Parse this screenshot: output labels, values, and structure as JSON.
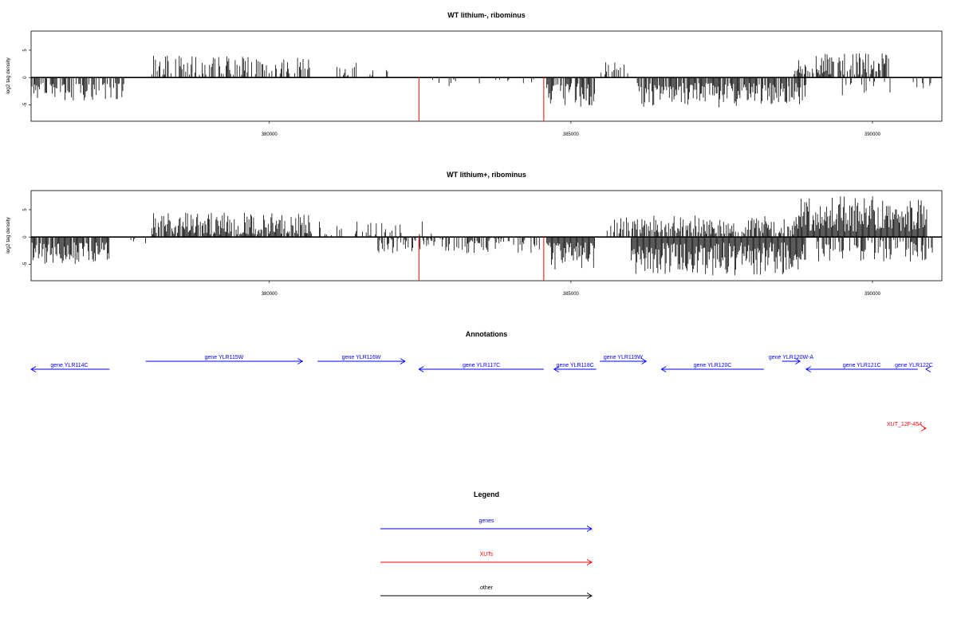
{
  "chart_data": [
    {
      "type": "bar",
      "title": "WT lithium-, ribominus",
      "ylabel": "log2 tag density",
      "xlim": [
        376050,
        391150
      ],
      "ylim": [
        -8,
        8.5
      ],
      "x_ticks": [
        380000,
        385000,
        390000
      ],
      "x_tick_labels": [
        "380000",
        "385000",
        "390000"
      ],
      "y_ticks": [
        -5,
        0,
        5
      ],
      "y_tick_labels": [
        "-5",
        "0",
        "5"
      ],
      "baseline_range": [
        376050,
        391150
      ],
      "segments": [
        {
          "start": 376050,
          "end": 377600,
          "sign": -1,
          "min": 1.0,
          "max": 4.2,
          "density": 0.6
        },
        {
          "start": 378050,
          "end": 380700,
          "sign": 1,
          "min": 0.5,
          "max": 4.0,
          "density": 0.55
        },
        {
          "start": 381000,
          "end": 382000,
          "sign": 1,
          "min": 0.3,
          "max": 3.0,
          "density": 0.15
        },
        {
          "start": 382600,
          "end": 384400,
          "sign": -1,
          "min": 0.3,
          "max": 2.0,
          "density": 0.15
        },
        {
          "start": 384600,
          "end": 385400,
          "sign": -1,
          "min": 1.0,
          "max": 5.5,
          "density": 0.7
        },
        {
          "start": 385500,
          "end": 386000,
          "sign": 1,
          "min": 0.5,
          "max": 3.0,
          "density": 0.3
        },
        {
          "start": 386100,
          "end": 388900,
          "sign": -1,
          "min": 1.0,
          "max": 5.5,
          "density": 0.9
        },
        {
          "start": 388700,
          "end": 390300,
          "sign": 1,
          "min": 0.5,
          "max": 4.5,
          "density": 0.7
        },
        {
          "start": 389500,
          "end": 390300,
          "sign": -1,
          "min": 0.5,
          "max": 3.5,
          "density": 0.3
        },
        {
          "start": 390600,
          "end": 391000,
          "sign": -1,
          "min": 0.5,
          "max": 2.0,
          "density": 0.2
        }
      ],
      "red_markers": [
        {
          "x": 382480,
          "y": -8
        },
        {
          "x": 384550,
          "y": -8
        }
      ]
    },
    {
      "type": "bar",
      "title": "WT lithium+, ribominus",
      "ylabel": "log2 tag density",
      "xlim": [
        376050,
        391150
      ],
      "ylim": [
        -8,
        8.5
      ],
      "x_ticks": [
        380000,
        385000,
        390000
      ],
      "x_tick_labels": [
        "380000",
        "385000",
        "390000"
      ],
      "y_ticks": [
        -5,
        0,
        5
      ],
      "y_tick_labels": [
        "-5",
        "0",
        "5"
      ],
      "baseline_range": [
        376050,
        391150
      ],
      "segments": [
        {
          "start": 376050,
          "end": 377350,
          "sign": -1,
          "min": 1.0,
          "max": 5.0,
          "density": 0.9
        },
        {
          "start": 377400,
          "end": 378000,
          "sign": -1,
          "min": 0.3,
          "max": 1.2,
          "density": 0.15
        },
        {
          "start": 378050,
          "end": 380700,
          "sign": 1,
          "min": 0.5,
          "max": 4.5,
          "density": 0.85
        },
        {
          "start": 380800,
          "end": 382700,
          "sign": 1,
          "min": 0.3,
          "max": 3.0,
          "density": 0.3
        },
        {
          "start": 381800,
          "end": 384500,
          "sign": -1,
          "min": 0.3,
          "max": 3.0,
          "density": 0.45
        },
        {
          "start": 384600,
          "end": 385400,
          "sign": -1,
          "min": 1.0,
          "max": 6.0,
          "density": 0.95
        },
        {
          "start": 385600,
          "end": 388800,
          "sign": 1,
          "min": 0.5,
          "max": 4.0,
          "density": 0.7
        },
        {
          "start": 386000,
          "end": 388900,
          "sign": -1,
          "min": 1.0,
          "max": 7.0,
          "density": 1.0
        },
        {
          "start": 388800,
          "end": 390900,
          "sign": 1,
          "min": 1.0,
          "max": 7.5,
          "density": 1.0
        },
        {
          "start": 389000,
          "end": 391000,
          "sign": -1,
          "min": 0.5,
          "max": 4.5,
          "density": 0.5
        }
      ],
      "red_markers": [
        {
          "x": 382480,
          "y": -8
        },
        {
          "x": 384550,
          "y": -8
        }
      ]
    }
  ],
  "annotations": {
    "title": "Annotations",
    "xlim": [
      376050,
      391150
    ],
    "features": [
      {
        "label": "gene YLR114C",
        "start": 375500,
        "end": 377350,
        "strand": "-",
        "row": 1,
        "kind": "gene"
      },
      {
        "label": "gene YLR115W",
        "start": 377950,
        "end": 380550,
        "strand": "+",
        "row": 0,
        "kind": "gene"
      },
      {
        "label": "gene YLR116W",
        "start": 380800,
        "end": 382250,
        "strand": "+",
        "row": 0,
        "kind": "gene"
      },
      {
        "label": "gene YLR117C",
        "start": 382480,
        "end": 384550,
        "strand": "-",
        "row": 1,
        "kind": "gene"
      },
      {
        "label": "gene YLR118C",
        "start": 384720,
        "end": 385420,
        "strand": "-",
        "row": 1,
        "kind": "gene"
      },
      {
        "label": "gene YLR119W",
        "start": 385480,
        "end": 386250,
        "strand": "+",
        "row": 0,
        "kind": "gene"
      },
      {
        "label": "gene YLR120C",
        "start": 386500,
        "end": 388200,
        "strand": "-",
        "row": 1,
        "kind": "gene"
      },
      {
        "label": "gene YLR120W-A",
        "start": 388500,
        "end": 388800,
        "strand": "+",
        "row": 0,
        "kind": "gene"
      },
      {
        "label": "gene YLR121C",
        "start": 388900,
        "end": 390750,
        "strand": "-",
        "row": 1,
        "kind": "gene"
      },
      {
        "label": "gene YLR122C",
        "start": 390950,
        "end": 391350,
        "strand": "-",
        "row": 1,
        "kind": "gene"
      },
      {
        "label": "XUT_12F-454",
        "start": 390850,
        "end": 391400,
        "strand": "+",
        "row": 2,
        "kind": "xut"
      }
    ]
  },
  "legend": {
    "title": "Legend",
    "items": [
      {
        "label": "genes",
        "color": "#0000ff"
      },
      {
        "label": "XUTs",
        "color": "#ff0000"
      },
      {
        "label": "other",
        "color": "#000000"
      }
    ]
  },
  "colors": {
    "bars": "#000000",
    "markers": "#ff0000",
    "gene": "#0000ff",
    "xut": "#ff0000"
  }
}
